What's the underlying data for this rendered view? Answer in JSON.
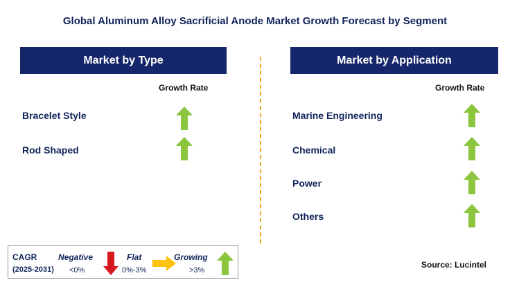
{
  "title": "Global Aluminum Alloy Sacrificial Anode Market Growth Forecast by Segment",
  "left_panel": {
    "header": "Market by Type",
    "growth_label": "Growth Rate",
    "items": [
      {
        "label": "Bracelet Style",
        "trend": "growing"
      },
      {
        "label": "Rod Shaped",
        "trend": "growing"
      }
    ]
  },
  "right_panel": {
    "header": "Market by Application",
    "growth_label": "Growth Rate",
    "items": [
      {
        "label": "Marine Engineering",
        "trend": "growing"
      },
      {
        "label": "Chemical",
        "trend": "growing"
      },
      {
        "label": "Power",
        "trend": "growing"
      },
      {
        "label": "Others",
        "trend": "growing"
      }
    ]
  },
  "legend": {
    "cagr_label": "CAGR",
    "period": "(2025-2031)",
    "negative_title": "Negative",
    "negative_value": "<0%",
    "flat_title": "Flat",
    "flat_value": "0%-3%",
    "growing_title": "Growing",
    "growing_value": ">3%"
  },
  "source": "Source: Lucintel",
  "colors": {
    "header_bg": "#15276a",
    "title_text": "#10245a",
    "growing": "#8cc63f",
    "negative": "#d71920",
    "flat": "#ffc20e",
    "divider": "#f5a623"
  },
  "icons": {
    "growing": "up-arrow-icon",
    "negative": "down-arrow-icon",
    "flat": "right-arrow-icon"
  }
}
